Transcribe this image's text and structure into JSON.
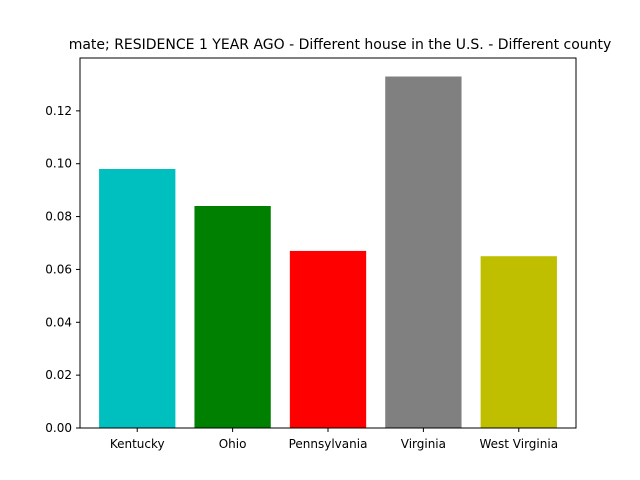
{
  "chart_data": {
    "type": "bar",
    "title": "mate; RESIDENCE 1 YEAR AGO - Different house in the U.S. - Different county",
    "xlabel": "",
    "ylabel": "",
    "categories": [
      "Kentucky",
      "Ohio",
      "Pennsylvania",
      "Virginia",
      "West Virginia"
    ],
    "values": [
      0.098,
      0.084,
      0.067,
      0.133,
      0.065
    ],
    "colors": [
      "#00bfbf",
      "#008000",
      "#ff0000",
      "#808080",
      "#bfbf00"
    ],
    "ylim": [
      0,
      0.14
    ],
    "yticks": [
      0.0,
      0.02,
      0.04,
      0.06,
      0.08,
      0.1,
      0.12
    ],
    "ytick_labels": [
      "0.00",
      "0.02",
      "0.04",
      "0.06",
      "0.08",
      "0.10",
      "0.12"
    ],
    "grid": false,
    "legend": "none"
  }
}
